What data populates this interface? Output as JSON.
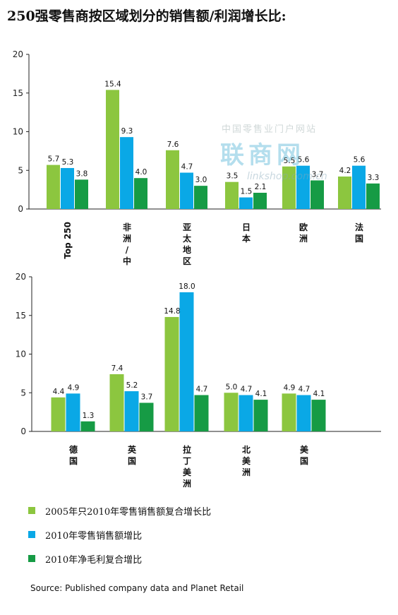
{
  "title": "250强零售商按区域划分的销售额/利润增长比:",
  "colors": {
    "series1": "#8cc63f",
    "series2": "#0aa8e6",
    "series3": "#169b45"
  },
  "chart_data": [
    {
      "type": "bar",
      "categories": [
        "Top 250",
        "非洲/中东地区",
        "亚太地区",
        "日本",
        "欧洲",
        "法国"
      ],
      "series": [
        {
          "name": "2005年只2010年零售销售额复合增长比",
          "values": [
            5.7,
            15.4,
            7.6,
            3.5,
            5.5,
            4.2
          ]
        },
        {
          "name": "2010年零售销售额增比",
          "values": [
            5.3,
            9.3,
            4.7,
            1.5,
            5.6,
            5.6
          ]
        },
        {
          "name": "2010年净毛利复合增比",
          "values": [
            3.8,
            4.0,
            3.0,
            2.1,
            3.7,
            3.3
          ]
        }
      ],
      "ylim": [
        0,
        20
      ],
      "yticks": [
        0,
        5,
        10,
        15,
        20
      ],
      "grid": false
    },
    {
      "type": "bar",
      "categories": [
        "德国",
        "英国",
        "拉丁美洲",
        "北美洲",
        "美国"
      ],
      "series": [
        {
          "name": "2005年只2010年零售销售额复合增长比",
          "values": [
            4.4,
            7.4,
            14.8,
            5.0,
            4.9
          ]
        },
        {
          "name": "2010年零售销售额增比",
          "values": [
            4.9,
            5.2,
            18.0,
            4.7,
            4.7
          ]
        },
        {
          "name": "2010年净毛利复合增比",
          "values": [
            1.3,
            3.7,
            4.7,
            4.1,
            4.1
          ]
        }
      ],
      "ylim": [
        0,
        20
      ],
      "yticks": [
        0,
        5,
        10,
        15,
        20
      ],
      "grid": false
    }
  ],
  "legend": [
    {
      "label": "2005年只2010年零售销售额复合增长比"
    },
    {
      "label": "2010年零售销售额增比"
    },
    {
      "label": "2010年净毛利复合增比"
    }
  ],
  "source": "Source: Published company data and Planet Retail",
  "watermark": {
    "top": "中国零售业门户网站",
    "mid": "联商网",
    "bottom": "linkshop.com.cn"
  }
}
